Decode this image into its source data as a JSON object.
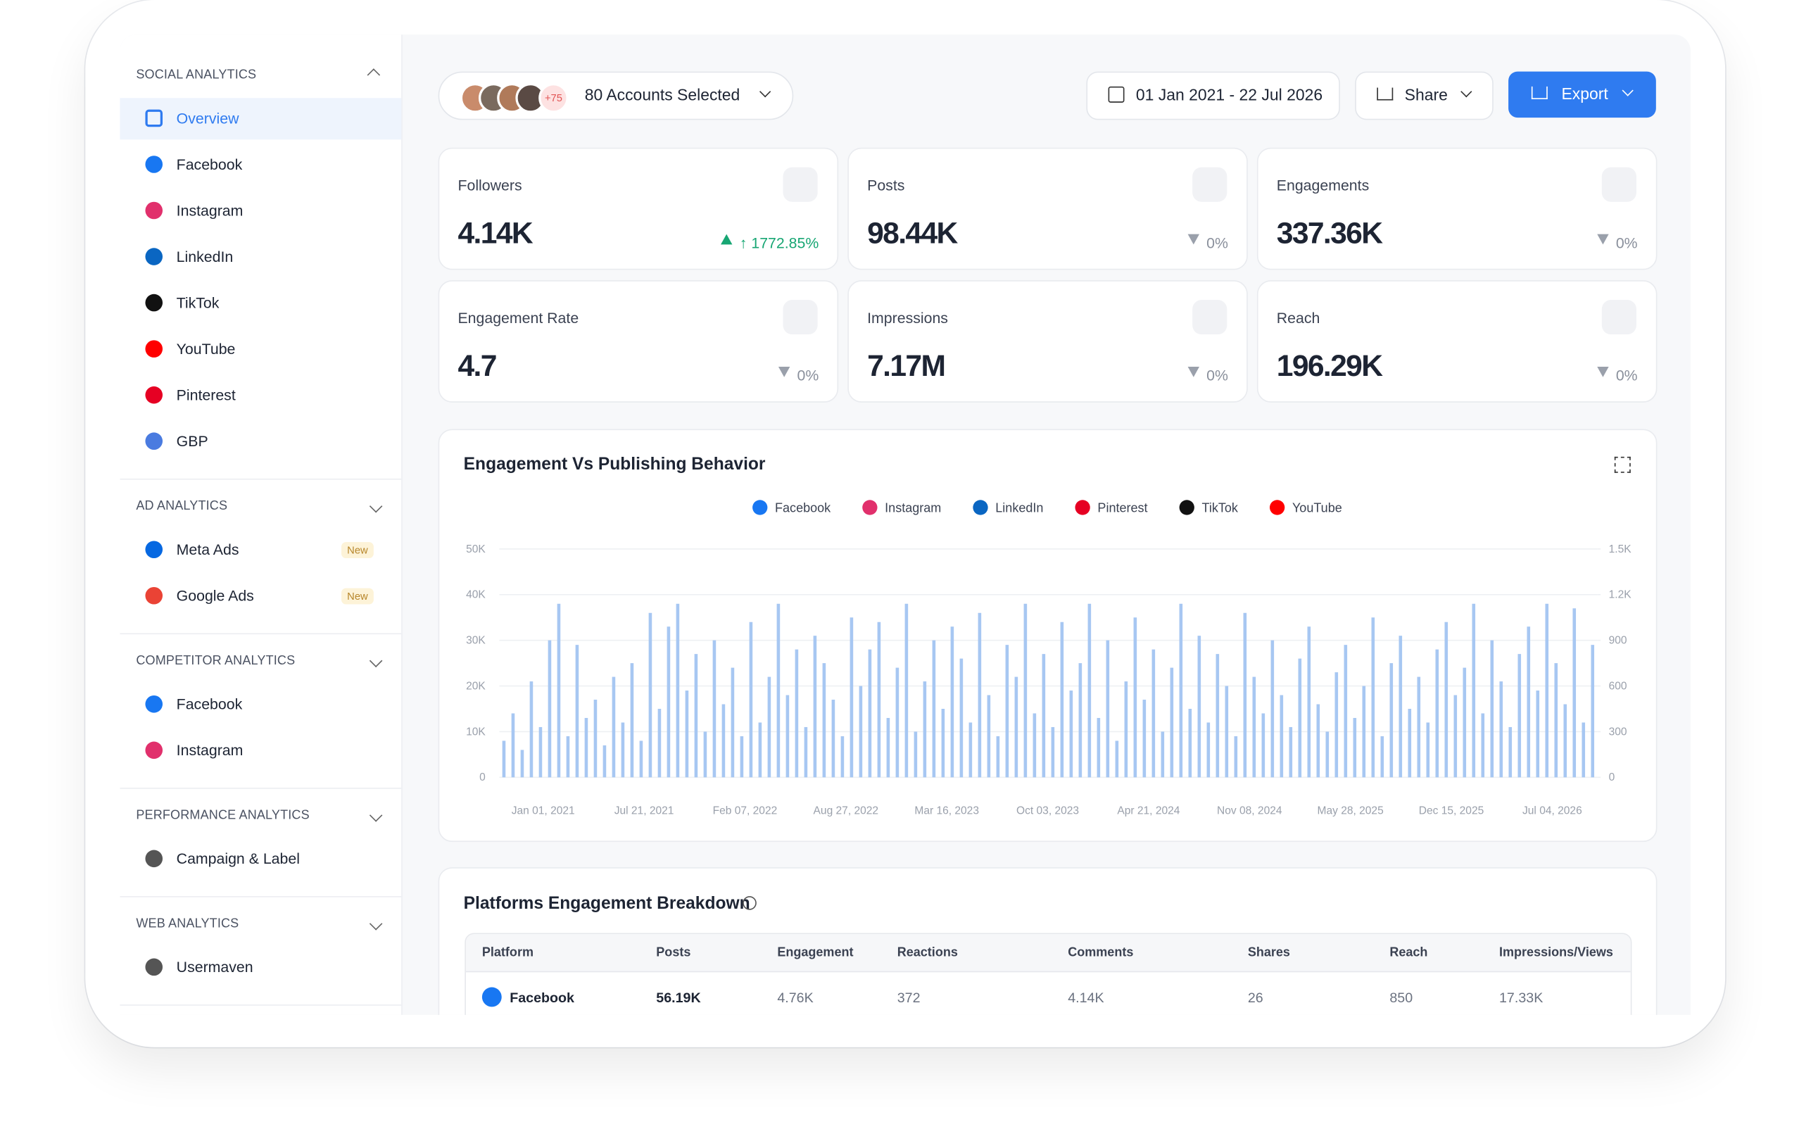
{
  "sidebar": {
    "sections": [
      {
        "title": "SOCIAL ANALYTICS",
        "items": [
          {
            "label": "Overview"
          },
          {
            "label": "Facebook"
          },
          {
            "label": "Instagram"
          },
          {
            "label": "LinkedIn"
          },
          {
            "label": "TikTok"
          },
          {
            "label": "YouTube"
          },
          {
            "label": "Pinterest"
          },
          {
            "label": "GBP"
          }
        ]
      },
      {
        "title": "AD ANALYTICS",
        "items": [
          {
            "label": "Meta Ads",
            "badge": "New"
          },
          {
            "label": "Google Ads",
            "badge": "New"
          }
        ]
      },
      {
        "title": "COMPETITOR ANALYTICS",
        "items": [
          {
            "label": "Facebook"
          },
          {
            "label": "Instagram"
          }
        ]
      },
      {
        "title": "PERFORMANCE ANALYTICS",
        "items": [
          {
            "label": "Campaign & Label"
          }
        ]
      },
      {
        "title": "WEB ANALYTICS",
        "items": [
          {
            "label": "Usermaven"
          }
        ]
      }
    ]
  },
  "toolbar": {
    "accounts_badge": "+75",
    "accounts": "80 Accounts Selected",
    "date_range": "01 Jan 2021 - 22 Jul 2026",
    "share": "Share",
    "export": "Export"
  },
  "kpis": [
    {
      "label": "Followers",
      "value": "4.14K",
      "change": "↑ 1772.85%",
      "trend": "up"
    },
    {
      "label": "Posts",
      "value": "98.44K",
      "change": "0%",
      "trend": "flat"
    },
    {
      "label": "Engagements",
      "value": "337.36K",
      "change": "0%",
      "trend": "flat"
    },
    {
      "label": "Engagement Rate",
      "value": "4.7",
      "change": "0%",
      "trend": "flat"
    },
    {
      "label": "Impressions",
      "value": "7.17M",
      "change": "0%",
      "trend": "flat"
    },
    {
      "label": "Reach",
      "value": "196.29K",
      "change": "0%",
      "trend": "flat"
    }
  ],
  "chart_data": {
    "type": "bar",
    "title": "Engagement Vs Publishing Behavior",
    "legend": [
      {
        "name": "Facebook",
        "color": "#1877f2"
      },
      {
        "name": "Instagram",
        "color": "#e1306c"
      },
      {
        "name": "LinkedIn",
        "color": "#0a66c2"
      },
      {
        "name": "Pinterest",
        "color": "#e60023"
      },
      {
        "name": "TikTok",
        "color": "#111111"
      },
      {
        "name": "YouTube",
        "color": "#ff0000"
      }
    ],
    "x_labels": [
      "Jan 01, 2021",
      "Jul 21, 2021",
      "Feb 07, 2022",
      "Aug 27, 2022",
      "Mar 16, 2023",
      "Oct 03, 2023",
      "Apr 21, 2024",
      "Nov 08, 2024",
      "May 28, 2025",
      "Dec 15, 2025",
      "Jul 04, 2026"
    ],
    "values": [
      8000,
      14000,
      6000,
      21000,
      11000,
      30000,
      38000,
      9000,
      29000,
      13000,
      17000,
      7000,
      22000,
      12000,
      25000,
      8000,
      36000,
      15000,
      33000,
      38000,
      19000,
      27000,
      10000,
      30000,
      16000,
      24000,
      9000,
      34000,
      12000,
      22000,
      38000,
      18000,
      28000,
      11000,
      31000,
      25000,
      17000,
      9000,
      35000,
      20000,
      28000,
      34000,
      13000,
      24000,
      38000,
      10000,
      21000,
      30000,
      15000,
      33000,
      26000,
      12000,
      36000,
      18000,
      9000,
      29000,
      22000,
      38000,
      14000,
      27000,
      11000,
      34000,
      19000,
      25000,
      38000,
      13000,
      30000,
      8000,
      21000,
      35000,
      17000,
      28000,
      10000,
      24000,
      38000,
      15000,
      31000,
      12000,
      27000,
      20000,
      9000,
      36000,
      22000,
      14000,
      30000,
      18000,
      11000,
      26000,
      33000,
      16000,
      10000,
      23000,
      29000,
      13000,
      20000,
      35000,
      9000,
      25000,
      31000,
      15000,
      22000,
      12000,
      28000,
      34000,
      18000,
      24000,
      38000,
      14000,
      30000,
      21000,
      11000,
      27000,
      33000,
      19000,
      38000,
      25000,
      16000,
      37000,
      12000,
      29000
    ],
    "color": "#a7c7f2",
    "ylim": [
      0,
      50000
    ],
    "yticks": [
      0,
      {
        "value": 10000,
        "label": "10K"
      },
      {
        "value": 20000,
        "label": "20K"
      },
      {
        "value": 30000,
        "label": "30K"
      },
      {
        "value": 40000,
        "label": "40K"
      },
      {
        "value": 50000,
        "label": "50K"
      }
    ],
    "y2lim": [
      0,
      1500
    ],
    "y2ticks": [
      0,
      300,
      600,
      900,
      {
        "value": 1200,
        "label": "1.2K"
      },
      {
        "value": 1500,
        "label": "1.5K"
      }
    ]
  },
  "table": {
    "title": "Platforms Engagement Breakdown",
    "columns": [
      "Platform",
      "Posts",
      "Engagement",
      "Reactions",
      "Comments",
      "Shares",
      "Reach",
      "Impressions/Views"
    ],
    "rows": [
      [
        "Facebook",
        "56.19K",
        "4.76K",
        "372",
        "4.14K",
        "26",
        "850",
        "17.33K"
      ]
    ]
  }
}
